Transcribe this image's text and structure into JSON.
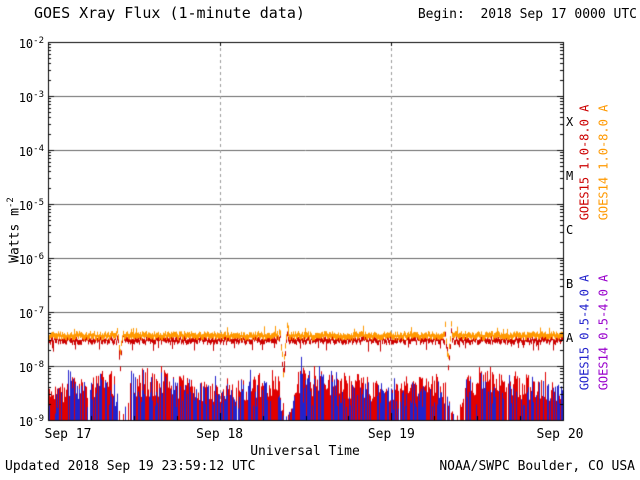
{
  "header": {
    "title": "GOES Xray Flux (1-minute data)",
    "begin_label": "Begin:  2018 Sep 17 0000 UTC"
  },
  "footer": {
    "updated": "Updated 2018 Sep 19 23:59:12 UTC",
    "credit": "NOAA/SWPC Boulder, CO USA"
  },
  "chart_data": {
    "type": "line",
    "title": "GOES Xray Flux (1-minute data)",
    "xlabel": "Universal Time",
    "ylabel_base": "Watts m",
    "ylabel_exp": "-2",
    "y_scale": "log",
    "ylim": [
      1e-09,
      0.01
    ],
    "y_tick_exponents": [
      -2,
      -3,
      -4,
      -5,
      -6,
      -7,
      -8,
      -9
    ],
    "x_ticks": [
      "Sep 17",
      "Sep 18",
      "Sep 19",
      "Sep 20"
    ],
    "x_range_days": 3,
    "x_start": "2018 Sep 17 0000 UTC",
    "grid": {
      "horizontal": "thin solid line at each decade",
      "vertical": "dashed line at each day boundary"
    },
    "flare_classes": [
      {
        "label": "X",
        "midpoint_exponent": -3.5
      },
      {
        "label": "M",
        "midpoint_exponent": -4.5
      },
      {
        "label": "C",
        "midpoint_exponent": -5.5
      },
      {
        "label": "B",
        "midpoint_exponent": -6.5
      },
      {
        "label": "A",
        "midpoint_exponent": -7.5
      }
    ],
    "series": [
      {
        "name": "GOES15 1.0-8.0 A",
        "color": "#cc0000",
        "band": "long",
        "typical_flux_w_m2": 3e-08
      },
      {
        "name": "GOES14 1.0-8.0 A",
        "color": "#ff9900",
        "band": "long",
        "typical_flux_w_m2": 3.6e-08
      },
      {
        "name": "GOES15 0.5-4.0 A",
        "color": "#2222cc",
        "band": "short",
        "typical_flux_range_w_m2": [
          1e-09,
          8e-09
        ],
        "notable_spike_peak_w_m2": 1.9e-08,
        "notable_spike_day": 1.475
      },
      {
        "name": "GOES14 0.5-4.0 A",
        "color": "#9900cc",
        "band": "short",
        "typical_flux_range_w_m2": [
          1e-09,
          8e-09
        ]
      }
    ],
    "data_dropout_times_days_from_start": [
      0.42,
      1.37,
      2.33
    ]
  },
  "render": {
    "seed": 1234567,
    "long_band": {
      "red": {
        "mean_log": -7.52,
        "jitter": 0.1,
        "half_thickness": 0.045,
        "color": "#cc0000"
      },
      "orange": {
        "mean_log": -7.44,
        "jitter": 0.08,
        "half_thickness": 0.05,
        "color": "#ff9900"
      },
      "eclipses": [
        {
          "center_day": 0.42,
          "dip_halfwidth_day": 0.013,
          "dip_depth_log": 0.45,
          "spike_halfwidth_day": 0.01,
          "spike_height_log": 0.33
        },
        {
          "center_day": 1.37,
          "dip_halfwidth_day": 0.018,
          "dip_depth_log": 0.7,
          "spike_halfwidth_day": 0.012,
          "spike_height_log": 0.35
        },
        {
          "center_day": 2.33,
          "dip_halfwidth_day": 0.014,
          "dip_depth_log": 0.5,
          "spike_halfwidth_day": 0.01,
          "spike_height_log": 0.3
        }
      ]
    },
    "short_band": {
      "red_color": "#e00000",
      "blue_color": "#2222cc",
      "floor_log": -9.0,
      "cap_log": -8.0,
      "envelope_base": 0.55,
      "envelope_day_amplitude": 0.3,
      "red_density": 0.96,
      "blue_density": 0.5,
      "quiet_windows": [
        {
          "center_day": 0.43,
          "halfwidth_day": 0.05
        },
        {
          "center_day": 1.39,
          "halfwidth_day": 0.05
        },
        {
          "center_day": 2.37,
          "halfwidth_day": 0.065
        }
      ],
      "blue_spikes": [
        {
          "time_day": 0.045,
          "peak_log": -8.3,
          "halfwidth_day": 0.008
        },
        {
          "time_day": 1.475,
          "peak_log": -7.72,
          "halfwidth_day": 0.012
        },
        {
          "time_day": 1.515,
          "peak_log": -8.15,
          "halfwidth_day": 0.007
        }
      ]
    }
  }
}
